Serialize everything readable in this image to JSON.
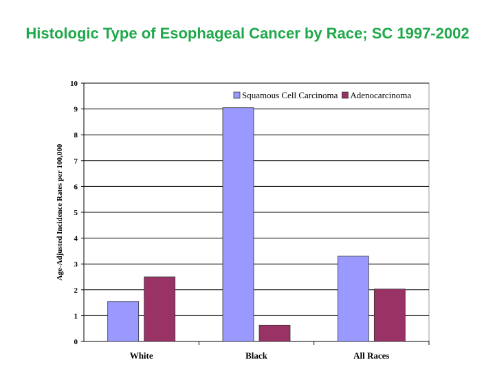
{
  "chart_data": {
    "type": "bar",
    "title": "Histologic Type of Esophageal Cancer by Race; SC 1997-2002",
    "xlabel": "",
    "ylabel": "Age-Adjusted Incidence Rates per 100,000",
    "categories": [
      "White",
      "Black",
      "All Races"
    ],
    "series": [
      {
        "name": "Squamous Cell Carcinoma",
        "color": "#9999ff",
        "values": [
          1.55,
          9.05,
          3.3
        ]
      },
      {
        "name": "Adenocarcinoma",
        "color": "#993366",
        "values": [
          2.5,
          0.63,
          2.03
        ]
      }
    ],
    "ylim": [
      0,
      10
    ],
    "yticks": [
      "0",
      "1",
      "2",
      "3",
      "4",
      "5",
      "6",
      "7",
      "8",
      "9",
      "10"
    ],
    "grid": true,
    "legend": "top-right"
  }
}
